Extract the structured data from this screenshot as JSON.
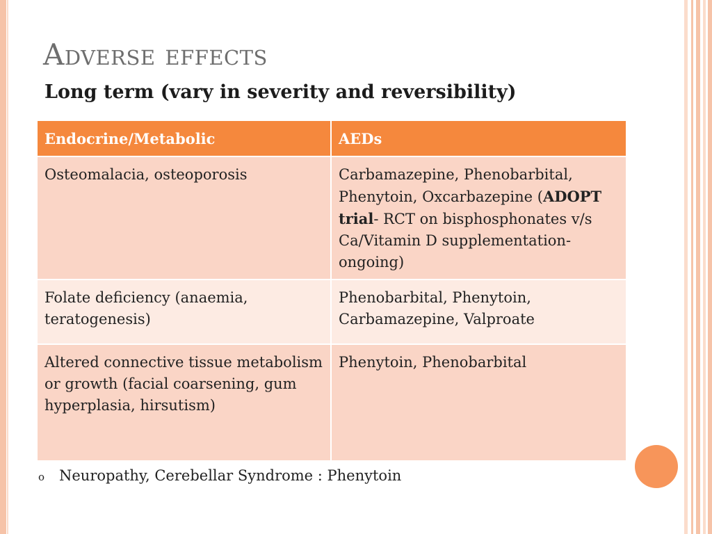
{
  "slide": {
    "title": "Adverse effects",
    "subtitle": "Long term (vary in severity and reversibility)"
  },
  "table": {
    "headers": [
      "Endocrine/Metabolic",
      "AEDs"
    ],
    "rows": [
      {
        "effect": "Osteomalacia, osteoporosis",
        "aeds_prefix": "Carbamazepine, Phenobarbital, Phenytoin, Oxcarbazepine (",
        "aeds_bold": "ADOPT trial",
        "aeds_suffix": "- RCT on bisphosphonates v/s Ca/Vitamin D supplementation- ongoing)"
      },
      {
        "effect": "Folate deficiency (anaemia, teratogenesis)",
        "aeds": "Phenobarbital, Phenytoin, Carbamazepine, Valproate"
      },
      {
        "effect": "Altered connective tissue metabolism or growth (facial coarsening, gum hyperplasia, hirsutism)",
        "aeds": "Phenytoin, Phenobarbital"
      }
    ]
  },
  "bullet": {
    "symbol": "o",
    "text": "Neuropathy, Cerebellar Syndrome :  Phenytoin"
  },
  "colors": {
    "header_bg": "#f5883d",
    "row_dark": "#fad5c6",
    "row_light": "#fdebe3",
    "title_gray": "#6e6e6e",
    "accent_dot": "#f7955a",
    "stripe": "#f6c3a8"
  }
}
